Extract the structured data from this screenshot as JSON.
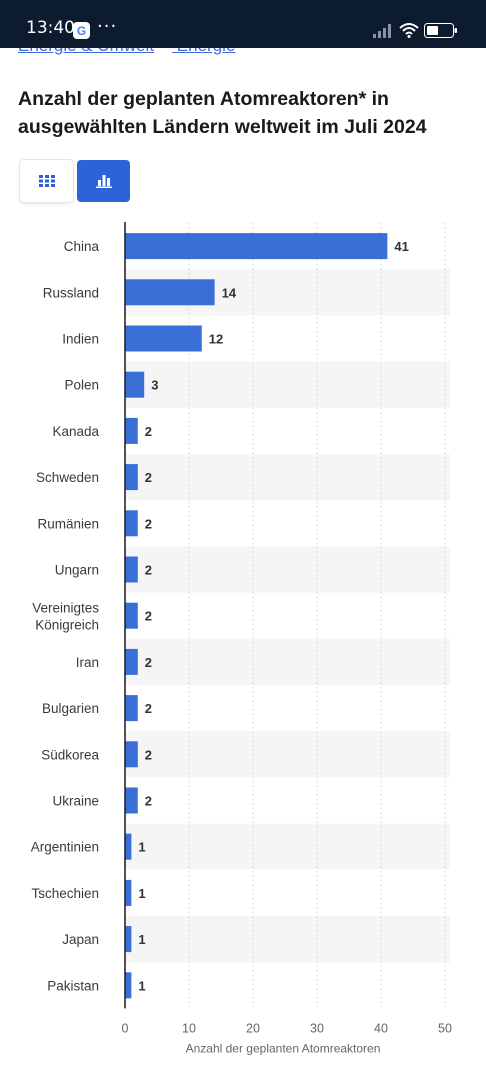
{
  "status_bar": {
    "time": "13:40",
    "icons": [
      "google-icon",
      "more-icon",
      "signal-icon",
      "wifi-icon",
      "battery-icon"
    ]
  },
  "breadcrumb": {
    "items": [
      "Energie & Umwelt",
      "Energie"
    ]
  },
  "page": {
    "title": "Anzahl der geplanten Atomreaktoren* in ausgewählten Ländern weltweit im Juli 2024"
  },
  "view_toggle": {
    "table_icon": "grid-icon",
    "chart_icon": "bar-chart-icon",
    "active": "chart"
  },
  "colors": {
    "bar": "#3a6fd8",
    "accent": "#2d63d8",
    "stripe": "#f5f5f5"
  },
  "chart_data": {
    "type": "bar",
    "orientation": "horizontal",
    "categories": [
      "China",
      "Russland",
      "Indien",
      "Polen",
      "Kanada",
      "Schweden",
      "Rumänien",
      "Ungarn",
      "Vereinigtes Königreich",
      "Iran",
      "Bulgarien",
      "Südkorea",
      "Ukraine",
      "Argentinien",
      "Tschechien",
      "Japan",
      "Pakistan"
    ],
    "values": [
      41,
      14,
      12,
      3,
      2,
      2,
      2,
      2,
      2,
      2,
      2,
      2,
      2,
      1,
      1,
      1,
      1
    ],
    "xlabel": "Anzahl der geplanten Atomreaktoren",
    "xlim": [
      0,
      50
    ],
    "xticks": [
      0,
      10,
      20,
      30,
      40,
      50
    ],
    "grid": "vertical dotted",
    "data_labels": true
  }
}
